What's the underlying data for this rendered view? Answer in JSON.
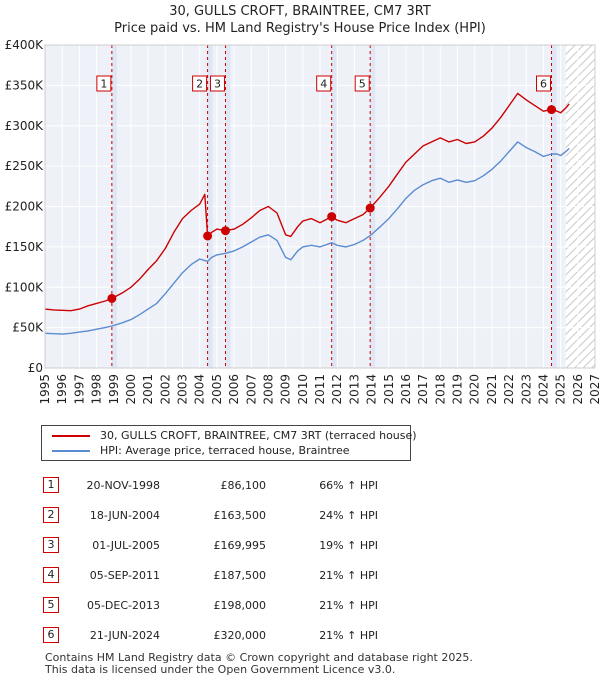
{
  "chart_data": {
    "type": "line",
    "title": "30, GULLS CROFT, BRAINTREE, CM7 3RT",
    "subtitle": "Price paid vs. HM Land Registry's House Price Index (HPI)",
    "xlim": [
      1995,
      2027
    ],
    "ylim": [
      0,
      400000
    ],
    "x_ticks": [
      "1995",
      "1996",
      "1997",
      "1998",
      "1999",
      "2000",
      "2001",
      "2002",
      "2003",
      "2004",
      "2005",
      "2006",
      "2007",
      "2008",
      "2009",
      "2010",
      "2011",
      "2012",
      "2013",
      "2014",
      "2015",
      "2016",
      "2017",
      "2018",
      "2019",
      "2020",
      "2021",
      "2022",
      "2023",
      "2024",
      "2025",
      "2026",
      "2027"
    ],
    "y_ticks": [
      {
        "value": 0,
        "label": "£0"
      },
      {
        "value": 50000,
        "label": "£50K"
      },
      {
        "value": 100000,
        "label": "£100K"
      },
      {
        "value": 150000,
        "label": "£150K"
      },
      {
        "value": 200000,
        "label": "£200K"
      },
      {
        "value": 250000,
        "label": "£250K"
      },
      {
        "value": 300000,
        "label": "£300K"
      },
      {
        "value": 350000,
        "label": "£350K"
      },
      {
        "value": 400000,
        "label": "£400K"
      }
    ],
    "forecast_from": 2025.3,
    "series": [
      {
        "name": "30, GULLS CROFT, BRAINTREE, CM7 3RT (terraced house)",
        "color": "#cc0000",
        "points": [
          [
            1995.0,
            73000
          ],
          [
            1995.5,
            72000
          ],
          [
            1996.0,
            71500
          ],
          [
            1996.5,
            71000
          ],
          [
            1997.0,
            73000
          ],
          [
            1997.5,
            77000
          ],
          [
            1998.0,
            80000
          ],
          [
            1998.5,
            83000
          ],
          [
            1998.89,
            86100
          ],
          [
            1999.5,
            93000
          ],
          [
            2000.0,
            100000
          ],
          [
            2000.5,
            110000
          ],
          [
            2001.0,
            122000
          ],
          [
            2001.5,
            133000
          ],
          [
            2002.0,
            148000
          ],
          [
            2002.5,
            168000
          ],
          [
            2003.0,
            185000
          ],
          [
            2003.5,
            195000
          ],
          [
            2004.0,
            203000
          ],
          [
            2004.3,
            215000
          ],
          [
            2004.46,
            163500
          ],
          [
            2004.7,
            168000
          ],
          [
            2005.0,
            172000
          ],
          [
            2005.5,
            169995
          ],
          [
            2006.0,
            172000
          ],
          [
            2006.5,
            178000
          ],
          [
            2007.0,
            186000
          ],
          [
            2007.5,
            195000
          ],
          [
            2008.0,
            200000
          ],
          [
            2008.5,
            192000
          ],
          [
            2009.0,
            165000
          ],
          [
            2009.3,
            163000
          ],
          [
            2009.7,
            175000
          ],
          [
            2010.0,
            182000
          ],
          [
            2010.5,
            185000
          ],
          [
            2011.0,
            180000
          ],
          [
            2011.68,
            187500
          ],
          [
            2012.0,
            183000
          ],
          [
            2012.5,
            180000
          ],
          [
            2013.0,
            185000
          ],
          [
            2013.5,
            190000
          ],
          [
            2013.92,
            198000
          ],
          [
            2014.5,
            212000
          ],
          [
            2015.0,
            225000
          ],
          [
            2015.5,
            240000
          ],
          [
            2016.0,
            255000
          ],
          [
            2016.5,
            265000
          ],
          [
            2017.0,
            275000
          ],
          [
            2017.5,
            280000
          ],
          [
            2018.0,
            285000
          ],
          [
            2018.5,
            280000
          ],
          [
            2019.0,
            283000
          ],
          [
            2019.5,
            278000
          ],
          [
            2020.0,
            280000
          ],
          [
            2020.5,
            287000
          ],
          [
            2021.0,
            297000
          ],
          [
            2021.5,
            310000
          ],
          [
            2022.0,
            325000
          ],
          [
            2022.5,
            340000
          ],
          [
            2023.0,
            332000
          ],
          [
            2023.5,
            325000
          ],
          [
            2024.0,
            318000
          ],
          [
            2024.47,
            320000
          ],
          [
            2024.8,
            318000
          ],
          [
            2025.0,
            316000
          ],
          [
            2025.3,
            322000
          ],
          [
            2025.5,
            327000
          ]
        ]
      },
      {
        "name": "HPI: Average price, terraced house, Braintree",
        "color": "#5b8bd0",
        "points": [
          [
            1995.0,
            43000
          ],
          [
            1995.5,
            42500
          ],
          [
            1996.0,
            42000
          ],
          [
            1996.5,
            43000
          ],
          [
            1997.0,
            44500
          ],
          [
            1997.5,
            46000
          ],
          [
            1998.0,
            48000
          ],
          [
            1998.5,
            50000
          ],
          [
            1998.89,
            52000
          ],
          [
            1999.5,
            56000
          ],
          [
            2000.0,
            60000
          ],
          [
            2000.5,
            66000
          ],
          [
            2001.0,
            73000
          ],
          [
            2001.5,
            80000
          ],
          [
            2002.0,
            92000
          ],
          [
            2002.5,
            105000
          ],
          [
            2003.0,
            118000
          ],
          [
            2003.5,
            128000
          ],
          [
            2004.0,
            135000
          ],
          [
            2004.46,
            132000
          ],
          [
            2004.7,
            137000
          ],
          [
            2005.0,
            140000
          ],
          [
            2005.5,
            142000
          ],
          [
            2006.0,
            145000
          ],
          [
            2006.5,
            150000
          ],
          [
            2007.0,
            156000
          ],
          [
            2007.5,
            162000
          ],
          [
            2008.0,
            165000
          ],
          [
            2008.5,
            158000
          ],
          [
            2009.0,
            137000
          ],
          [
            2009.3,
            134000
          ],
          [
            2009.7,
            145000
          ],
          [
            2010.0,
            150000
          ],
          [
            2010.5,
            152000
          ],
          [
            2011.0,
            150000
          ],
          [
            2011.68,
            155000
          ],
          [
            2012.0,
            152000
          ],
          [
            2012.5,
            150000
          ],
          [
            2013.0,
            153000
          ],
          [
            2013.5,
            158000
          ],
          [
            2013.92,
            164000
          ],
          [
            2014.5,
            175000
          ],
          [
            2015.0,
            185000
          ],
          [
            2015.5,
            197000
          ],
          [
            2016.0,
            210000
          ],
          [
            2016.5,
            220000
          ],
          [
            2017.0,
            227000
          ],
          [
            2017.5,
            232000
          ],
          [
            2018.0,
            235000
          ],
          [
            2018.5,
            230000
          ],
          [
            2019.0,
            233000
          ],
          [
            2019.5,
            230000
          ],
          [
            2020.0,
            232000
          ],
          [
            2020.5,
            238000
          ],
          [
            2021.0,
            246000
          ],
          [
            2021.5,
            256000
          ],
          [
            2022.0,
            268000
          ],
          [
            2022.5,
            280000
          ],
          [
            2023.0,
            273000
          ],
          [
            2023.5,
            268000
          ],
          [
            2024.0,
            262000
          ],
          [
            2024.47,
            265000
          ],
          [
            2024.8,
            265000
          ],
          [
            2025.0,
            263000
          ],
          [
            2025.3,
            268000
          ],
          [
            2025.5,
            272000
          ]
        ]
      }
    ],
    "sales": [
      {
        "num": "1",
        "x": 1998.89,
        "date": "20-NOV-1998",
        "price_value": 86100,
        "price": "£86,100",
        "hpi": "66% ↑ HPI"
      },
      {
        "num": "2",
        "x": 2004.46,
        "date": "18-JUN-2004",
        "price_value": 163500,
        "price": "£163,500",
        "hpi": "24% ↑ HPI"
      },
      {
        "num": "3",
        "x": 2005.5,
        "date": "01-JUL-2005",
        "price_value": 169995,
        "price": "£169,995",
        "hpi": "19% ↑ HPI"
      },
      {
        "num": "4",
        "x": 2011.68,
        "date": "05-SEP-2011",
        "price_value": 187500,
        "price": "£187,500",
        "hpi": "21% ↑ HPI"
      },
      {
        "num": "5",
        "x": 2013.92,
        "date": "05-DEC-2013",
        "price_value": 198000,
        "price": "£198,000",
        "hpi": "21% ↑ HPI"
      },
      {
        "num": "6",
        "x": 2024.47,
        "date": "21-JUN-2024",
        "price_value": 320000,
        "price": "£320,000",
        "hpi": "21% ↑ HPI"
      }
    ]
  },
  "footer": {
    "line1": "Contains HM Land Registry data © Crown copyright and database right 2025.",
    "line2": "This data is licensed under the Open Government Licence v3.0."
  }
}
